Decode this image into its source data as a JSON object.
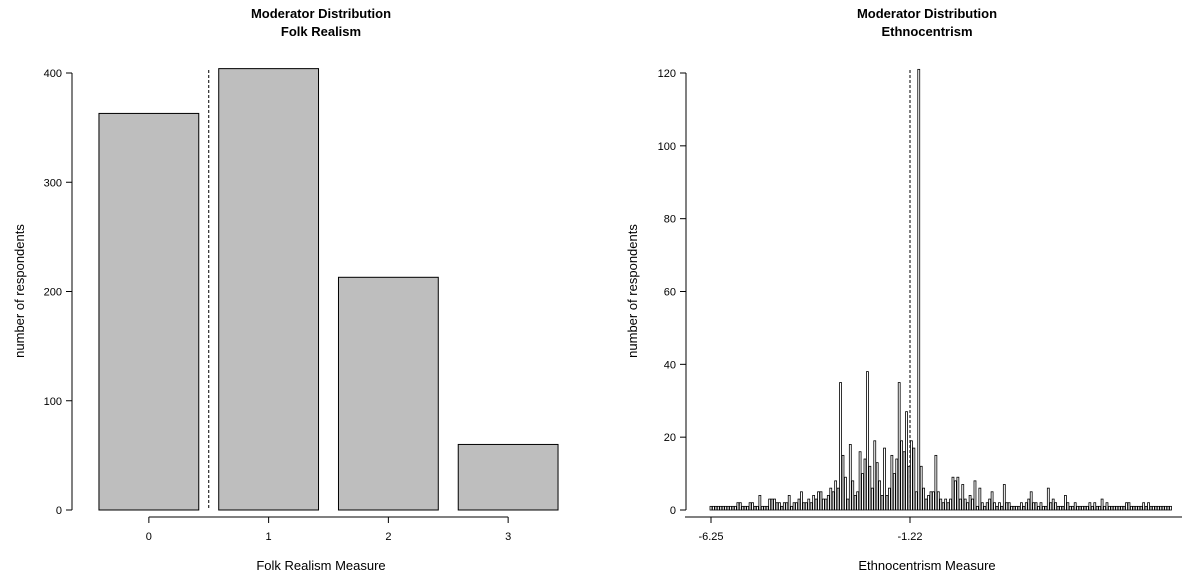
{
  "chart_data": [
    {
      "type": "bar",
      "title": "Moderator Distribution",
      "subtitle": "Folk Realism",
      "xlabel": "Folk Realism Measure",
      "ylabel": "number of respondents",
      "categories": [
        "0",
        "1",
        "2",
        "3"
      ],
      "values": [
        363,
        404,
        213,
        60
      ],
      "ylim": [
        0,
        400
      ],
      "yticks": [
        "0",
        "100",
        "200",
        "300",
        "400"
      ],
      "reference_line": {
        "style": "dashed",
        "between_categories": [
          "0",
          "1"
        ]
      },
      "grid": false
    },
    {
      "type": "bar",
      "title": "Moderator Distribution",
      "subtitle": "Ethnocentrism",
      "xlabel": "Ethnocentrism Measure",
      "ylabel": "number of respondents",
      "xticks": [
        "-6.25",
        "-1.22"
      ],
      "yticks": [
        "0",
        "20",
        "40",
        "60",
        "80",
        "100",
        "120"
      ],
      "ylim": [
        0,
        120
      ],
      "values": [
        1,
        1,
        1,
        1,
        1,
        1,
        1,
        1,
        1,
        1,
        1,
        2,
        2,
        1,
        1,
        1,
        2,
        2,
        1,
        1,
        4,
        1,
        1,
        1,
        3,
        3,
        3,
        2,
        2,
        1,
        2,
        2,
        4,
        1,
        2,
        2,
        3,
        5,
        2,
        2,
        3,
        2,
        4,
        3,
        5,
        5,
        3,
        3,
        4,
        6,
        5,
        8,
        6,
        35,
        15,
        9,
        3,
        18,
        8,
        4,
        5,
        16,
        10,
        14,
        38,
        12,
        6,
        19,
        13,
        8,
        4,
        17,
        4,
        6,
        15,
        10,
        14,
        35,
        19,
        16,
        27,
        12,
        19,
        17,
        5,
        121,
        12,
        6,
        3,
        4,
        5,
        5,
        15,
        5,
        3,
        2,
        3,
        2,
        3,
        9,
        8,
        9,
        3,
        7,
        3,
        2,
        4,
        3,
        8,
        1,
        6,
        2,
        1,
        2,
        3,
        5,
        2,
        1,
        2,
        1,
        7,
        2,
        2,
        1,
        1,
        1,
        1,
        2,
        1,
        2,
        3,
        5,
        2,
        2,
        1,
        2,
        1,
        1,
        6,
        2,
        3,
        2,
        1,
        1,
        1,
        4,
        2,
        1,
        1,
        2,
        1,
        1,
        1,
        1,
        1,
        2,
        1,
        2,
        1,
        1,
        3,
        1,
        2,
        1,
        1,
        1,
        1,
        1,
        1,
        1,
        2,
        2,
        1,
        1,
        1,
        1,
        1,
        2,
        1,
        2,
        1,
        1,
        1,
        1,
        1,
        1,
        1,
        1,
        1
      ],
      "reference_line": {
        "style": "dotted",
        "x": "-1.22"
      },
      "grid": false
    }
  ]
}
